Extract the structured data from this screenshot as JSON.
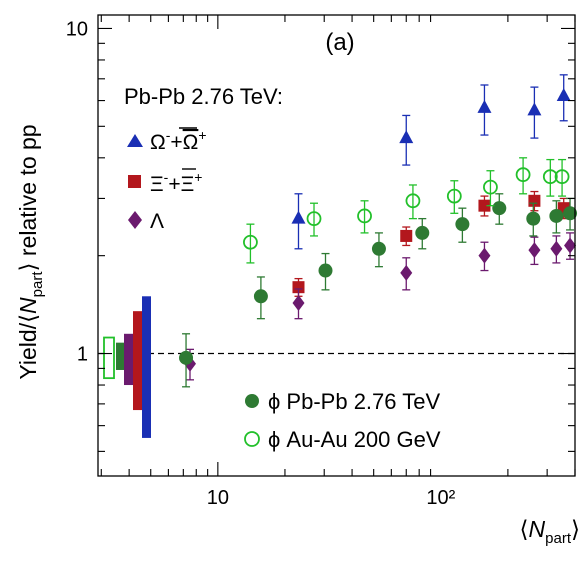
{
  "chart_data": {
    "type": "scatter",
    "panel_label": "(a)",
    "xlabel": "⟨N_part⟩",
    "ylabel": "Yield/⟨N_part⟩ relative to pp",
    "xscale": "log",
    "yscale": "log",
    "xlim": [
      2.9,
      400
    ],
    "ylim": [
      0.42,
      11
    ],
    "x_tick_labels": [
      "10",
      "10²"
    ],
    "y_tick_labels": [
      "1",
      "10"
    ],
    "reference_line": {
      "y": 1,
      "style": "dashed"
    },
    "legend_top": {
      "title": "Pb-Pb 2.76 TeV:",
      "entries": [
        "Ω⁻+Ω̄⁺",
        "Ξ⁻+Ξ̄⁺",
        "Λ"
      ],
      "position": "top-left"
    },
    "legend_bottom": {
      "entries": [
        "ϕ Pb-Pb 2.76 TeV",
        "ϕ Au-Au 200 GeV"
      ],
      "position": "bottom-center"
    },
    "series": [
      {
        "name": "Ω⁻+Ω̄⁺",
        "marker": "triangle",
        "color": "#1a2fb4",
        "points": [
          {
            "x": 23,
            "y": 2.6,
            "err": 0.5
          },
          {
            "x": 70,
            "y": 4.6,
            "err": 0.8
          },
          {
            "x": 157,
            "y": 5.7,
            "err": 1.0
          },
          {
            "x": 263,
            "y": 5.6,
            "err": 1.0
          },
          {
            "x": 356,
            "y": 6.2,
            "err": 1.0
          }
        ]
      },
      {
        "name": "Ξ⁻+Ξ̄⁺",
        "marker": "square",
        "color": "#b3171d",
        "points": [
          {
            "x": 23,
            "y": 1.6,
            "err": 0.1
          },
          {
            "x": 70,
            "y": 2.3,
            "err": 0.15
          },
          {
            "x": 157,
            "y": 2.85,
            "err": 0.2
          },
          {
            "x": 263,
            "y": 2.95,
            "err": 0.2
          },
          {
            "x": 356,
            "y": 2.8,
            "err": 0.2
          }
        ]
      },
      {
        "name": "Λ",
        "marker": "diamond",
        "color": "#6b1a6e",
        "points": [
          {
            "x": 7.5,
            "y": 0.93,
            "err": 0.1
          },
          {
            "x": 23,
            "y": 1.43,
            "err": 0.15
          },
          {
            "x": 70,
            "y": 1.77,
            "err": 0.2
          },
          {
            "x": 157,
            "y": 2.0,
            "err": 0.2
          },
          {
            "x": 263,
            "y": 2.08,
            "err": 0.2
          },
          {
            "x": 330,
            "y": 2.1,
            "err": 0.2
          },
          {
            "x": 380,
            "y": 2.15,
            "err": 0.2
          }
        ]
      },
      {
        "name": "ϕ Pb-Pb 2.76 TeV",
        "marker": "circle",
        "color": "#2e7a33",
        "points": [
          {
            "x": 7.2,
            "y": 0.97,
            "err": 0.18
          },
          {
            "x": 15.6,
            "y": 1.5,
            "err": 0.22
          },
          {
            "x": 30.4,
            "y": 1.8,
            "err": 0.23
          },
          {
            "x": 52.8,
            "y": 2.1,
            "err": 0.25
          },
          {
            "x": 82.6,
            "y": 2.35,
            "err": 0.25
          },
          {
            "x": 125,
            "y": 2.5,
            "err": 0.3
          },
          {
            "x": 183,
            "y": 2.8,
            "err": 0.3
          },
          {
            "x": 260,
            "y": 2.6,
            "err": 0.3
          },
          {
            "x": 330,
            "y": 2.65,
            "err": 0.3
          },
          {
            "x": 380,
            "y": 2.7,
            "err": 0.3
          }
        ]
      },
      {
        "name": "ϕ Au-Au 200 GeV",
        "marker": "open-circle",
        "color": "#22c02a",
        "points": [
          {
            "x": 14,
            "y": 2.2,
            "err": 0.3
          },
          {
            "x": 27,
            "y": 2.6,
            "err": 0.3
          },
          {
            "x": 45.5,
            "y": 2.65,
            "err": 0.3
          },
          {
            "x": 75,
            "y": 2.95,
            "err": 0.35
          },
          {
            "x": 115,
            "y": 3.05,
            "err": 0.35
          },
          {
            "x": 167,
            "y": 3.25,
            "err": 0.4
          },
          {
            "x": 234,
            "y": 3.55,
            "err": 0.45
          },
          {
            "x": 310,
            "y": 3.5,
            "err": 0.45
          },
          {
            "x": 350,
            "y": 3.5,
            "err": 0.45
          }
        ]
      }
    ],
    "norm_boxes": [
      {
        "series": "ϕ Au-Au 200 GeV",
        "color": "#22c02a",
        "style": "open",
        "ylo": 0.84,
        "yhi": 1.12
      },
      {
        "series": "ϕ Pb-Pb 2.76 TeV",
        "color": "#2e7a33",
        "style": "filled",
        "ylo": 0.89,
        "yhi": 1.08
      },
      {
        "series": "Λ",
        "color": "#6b1a6e",
        "style": "filled",
        "ylo": 0.8,
        "yhi": 1.15
      },
      {
        "series": "Ξ⁻+Ξ̄⁺",
        "color": "#b3171d",
        "style": "filled",
        "ylo": 0.67,
        "yhi": 1.35
      },
      {
        "series": "Ω⁻+Ω̄⁺",
        "color": "#1a2fb4",
        "style": "filled",
        "ylo": 0.55,
        "yhi": 1.5
      }
    ]
  }
}
